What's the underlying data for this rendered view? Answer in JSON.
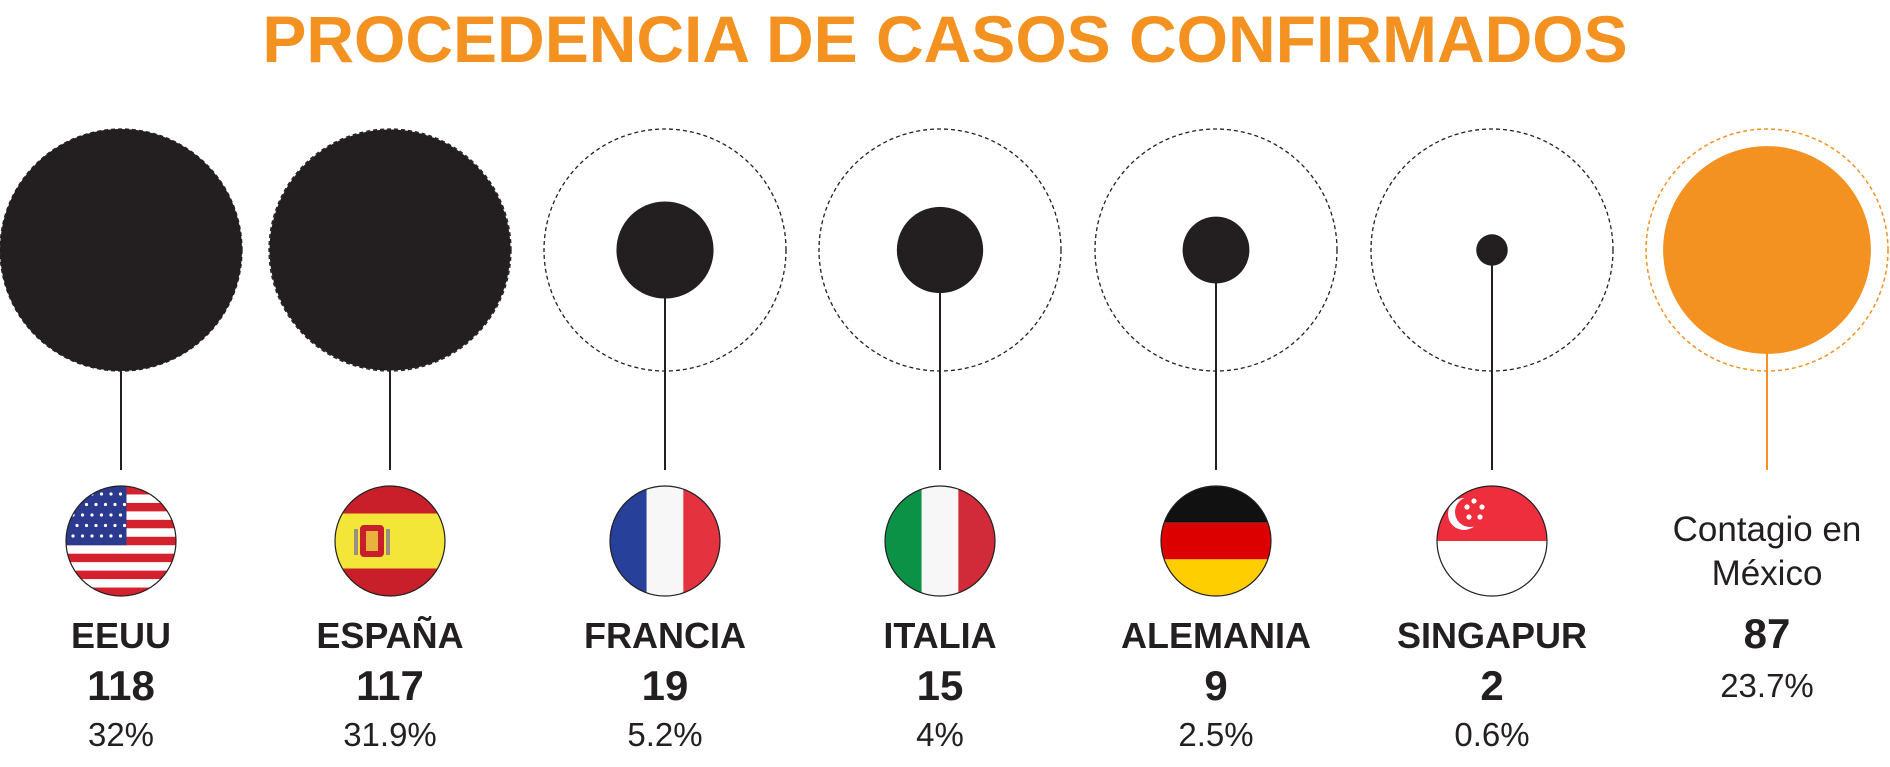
{
  "chart_data": {
    "type": "bubble",
    "title": "PROCEDENCIA DE CASOS CONFIRMADOS",
    "categories": [
      "EEUU",
      "ESPAÑA",
      "FRANCIA",
      "ITALIA",
      "ALEMANIA",
      "SINGAPUR"
    ],
    "values": [
      118,
      117,
      19,
      15,
      9,
      2
    ],
    "percent_labels": [
      "32%",
      "31.9%",
      "5.2%",
      "4%",
      "2.5%",
      "0.6%"
    ],
    "flags": [
      "usa-flag",
      "spain-flag",
      "france-flag",
      "italy-flag",
      "germany-flag",
      "singapore-flag"
    ],
    "highlight": {
      "label": [
        "Contagio en",
        "México"
      ],
      "value": 87,
      "percent_label": "23.7%"
    },
    "colors": {
      "title": "#F39221",
      "bubble": "#231F20",
      "highlight": "#F39221",
      "text": "#231F20"
    }
  }
}
